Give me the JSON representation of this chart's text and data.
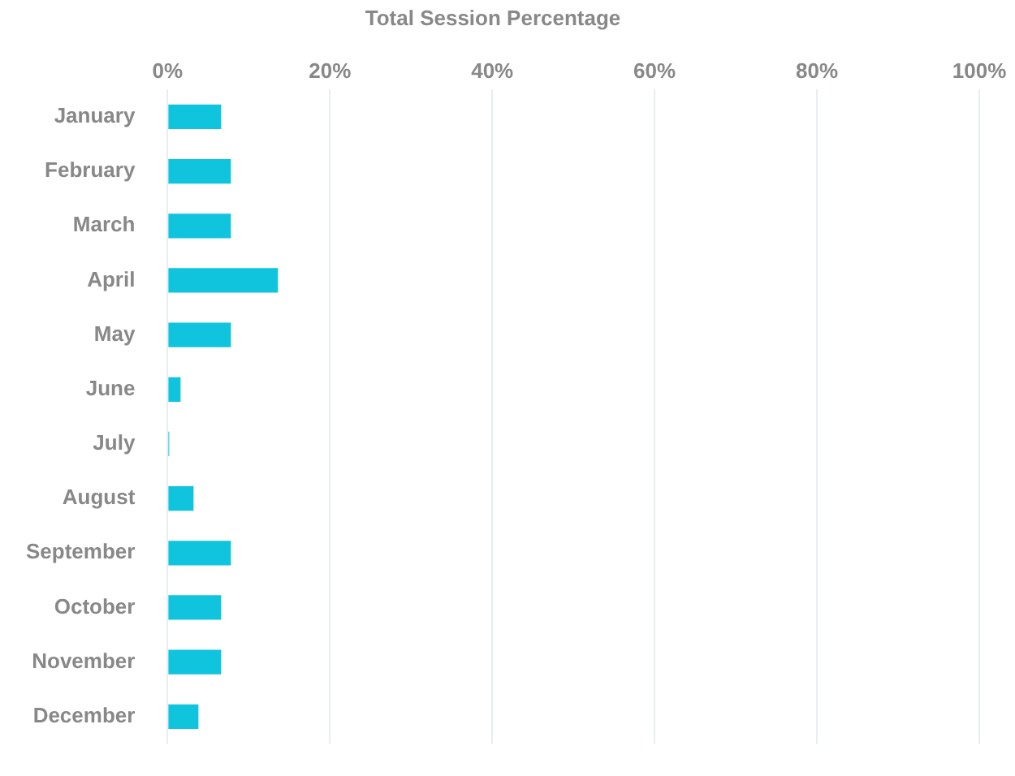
{
  "chart_data": {
    "type": "bar",
    "orientation": "horizontal",
    "title": "Total Session Percentage",
    "categories": [
      "January",
      "February",
      "March",
      "April",
      "May",
      "June",
      "July",
      "August",
      "September",
      "October",
      "November",
      "December"
    ],
    "values": [
      6.6,
      7.8,
      7.8,
      13.6,
      7.8,
      1.6,
      0.2,
      3.2,
      7.8,
      6.6,
      6.6,
      3.8
    ],
    "color": "#0fc4dc",
    "xlim": [
      0,
      100
    ],
    "xticks": [
      {
        "value": 0,
        "label": "0%"
      },
      {
        "value": 20,
        "label": "20%"
      },
      {
        "value": 40,
        "label": "40%"
      },
      {
        "value": 60,
        "label": "60%"
      },
      {
        "value": 80,
        "label": "80%"
      },
      {
        "value": 100,
        "label": "100%"
      }
    ],
    "grid": "x",
    "legend": false
  }
}
